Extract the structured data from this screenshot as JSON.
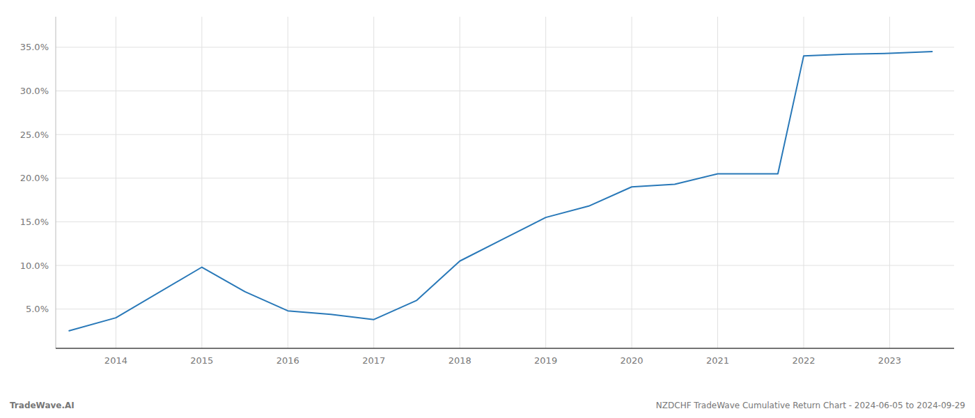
{
  "chart_data": {
    "type": "line",
    "x": [
      2013.45,
      2014.0,
      2015.0,
      2015.5,
      2016.0,
      2016.5,
      2017.0,
      2017.5,
      2018.0,
      2018.5,
      2019.0,
      2019.5,
      2020.0,
      2020.5,
      2021.0,
      2021.3,
      2021.7,
      2022.0,
      2022.5,
      2023.0,
      2023.5
    ],
    "values": [
      0.025,
      0.04,
      0.098,
      0.07,
      0.048,
      0.044,
      0.038,
      0.06,
      0.105,
      0.13,
      0.155,
      0.168,
      0.19,
      0.193,
      0.205,
      0.205,
      0.205,
      0.34,
      0.342,
      0.343,
      0.345
    ],
    "color": "#2878b8",
    "xlim": [
      2013.3,
      2023.75
    ],
    "ylim": [
      0.005,
      0.385
    ],
    "xticks": [
      2014,
      2015,
      2016,
      2017,
      2018,
      2019,
      2020,
      2021,
      2022,
      2023
    ],
    "yticks": [
      {
        "value": 0.05,
        "label": "5.0%"
      },
      {
        "value": 0.1,
        "label": "10.0%"
      },
      {
        "value": 0.15,
        "label": "15.0%"
      },
      {
        "value": 0.2,
        "label": "20.0%"
      },
      {
        "value": 0.25,
        "label": "25.0%"
      },
      {
        "value": 0.3,
        "label": "30.0%"
      },
      {
        "value": 0.35,
        "label": "35.0%"
      }
    ],
    "grid": true,
    "annotations": [
      "TradeWave.AI",
      "NZDCHF TradeWave Cumulative Return Chart - 2024-06-05 to 2024-09-29"
    ]
  }
}
